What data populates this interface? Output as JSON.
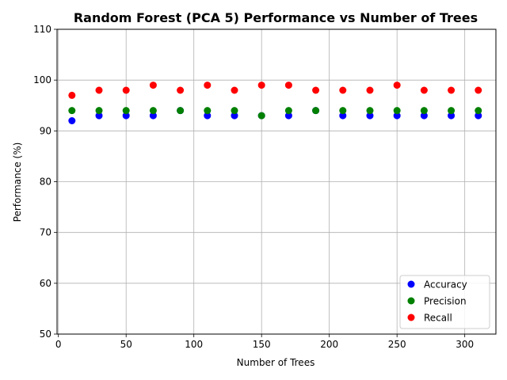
{
  "chart_data": {
    "type": "scatter",
    "title": "Random Forest (PCA 5) Performance vs Number of Trees",
    "xlabel": "Number of Trees",
    "ylabel": "Performance (%)",
    "xlim": [
      -1,
      323
    ],
    "ylim": [
      50,
      110
    ],
    "xticks": [
      0,
      50,
      100,
      150,
      200,
      250,
      300
    ],
    "yticks": [
      50,
      60,
      70,
      80,
      90,
      100,
      110
    ],
    "grid": true,
    "legend_position": "lower-right",
    "x": [
      10,
      30,
      50,
      70,
      90,
      110,
      130,
      150,
      170,
      190,
      210,
      230,
      250,
      270,
      290,
      310
    ],
    "series": [
      {
        "name": "Accuracy",
        "color": "#0000ff",
        "values": [
          92,
          93,
          93,
          93,
          94,
          93,
          93,
          93,
          93,
          94,
          93,
          93,
          93,
          93,
          93,
          93
        ]
      },
      {
        "name": "Precision",
        "color": "#008000",
        "values": [
          94,
          94,
          94,
          94,
          94,
          94,
          94,
          93,
          94,
          94,
          94,
          94,
          94,
          94,
          94,
          94
        ]
      },
      {
        "name": "Recall",
        "color": "#ff0000",
        "values": [
          97,
          98,
          98,
          99,
          98,
          99,
          98,
          99,
          99,
          98,
          98,
          98,
          99,
          98,
          98,
          98
        ]
      }
    ]
  }
}
